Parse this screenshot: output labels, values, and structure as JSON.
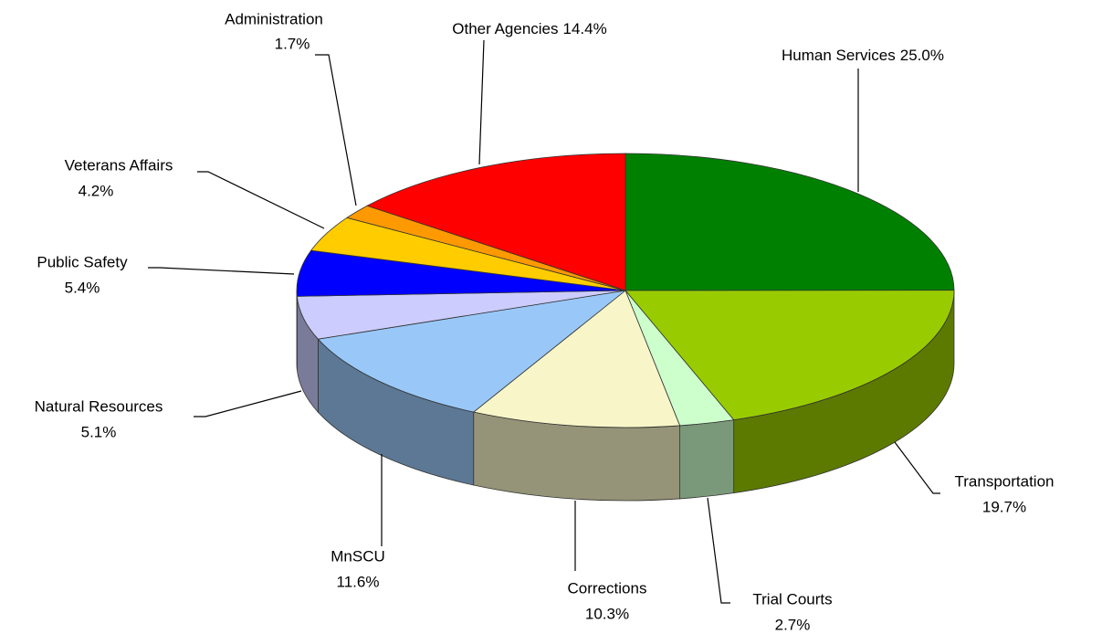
{
  "chart_data": {
    "type": "pie",
    "categories": [
      "Human Services",
      "Transportation",
      "Trial Courts",
      "Corrections",
      "MnSCU",
      "Natural Resources",
      "Public Safety",
      "Veterans Affairs",
      "Administration",
      "Other Agencies"
    ],
    "values": [
      25.0,
      19.7,
      2.7,
      10.3,
      11.6,
      5.1,
      5.4,
      4.2,
      1.7,
      14.4
    ],
    "value_labels": [
      "25.0%",
      "19.7%",
      "2.7%",
      "10.3%",
      "11.6%",
      "5.1%",
      "5.4%",
      "4.2%",
      "1.7%",
      "14.4%"
    ],
    "colors": [
      "#008000",
      "#99cc00",
      "#ccffcc",
      "#f8f6c8",
      "#99c8f8",
      "#ccccff",
      "#0000ff",
      "#ffcc00",
      "#ff9900",
      "#ff0000"
    ]
  }
}
